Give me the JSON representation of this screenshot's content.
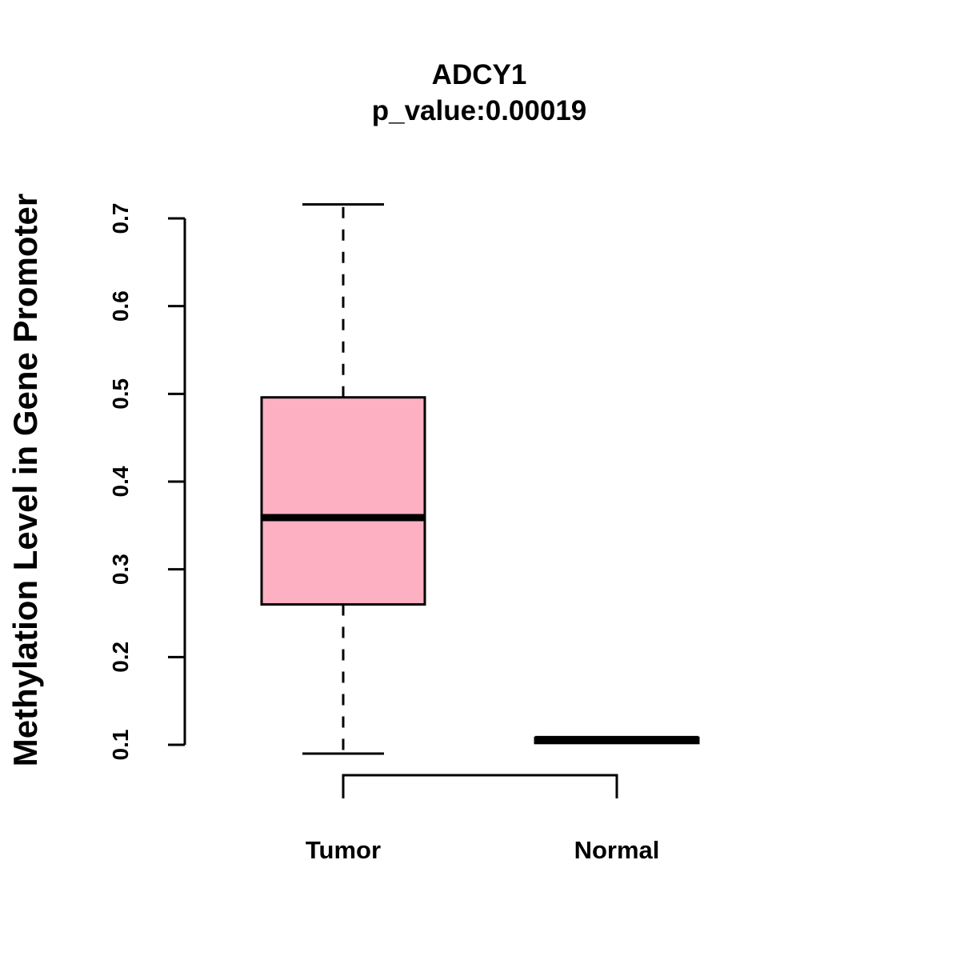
{
  "chart_data": {
    "type": "boxplot",
    "title": "ADCY1",
    "subtitle": "p_value:0.00019",
    "xlabel": "",
    "ylabel": "Methylation Level in Gene Promoter",
    "ylim": [
      0.1,
      0.7
    ],
    "yticks": [
      {
        "value": 0.1,
        "label": "0.1"
      },
      {
        "value": 0.2,
        "label": "0.2"
      },
      {
        "value": 0.3,
        "label": "0.3"
      },
      {
        "value": 0.4,
        "label": "0.4"
      },
      {
        "value": 0.5,
        "label": "0.5"
      },
      {
        "value": 0.6,
        "label": "0.6"
      },
      {
        "value": 0.7,
        "label": "0.7"
      }
    ],
    "categories": [
      "Tumor",
      "Normal"
    ],
    "groups": [
      {
        "name": "Tumor",
        "whisker_low": 0.09,
        "q1": 0.26,
        "median": 0.359,
        "q3": 0.496,
        "whisker_high": 0.716,
        "fill": "#fdb0c2"
      },
      {
        "name": "Normal",
        "whisker_low": 0.102,
        "q1": 0.102,
        "median": 0.106,
        "q3": 0.108,
        "whisker_high": 0.108,
        "fill": "#fdb0c2"
      }
    ],
    "grid": false,
    "legend": "none"
  },
  "colors": {
    "box_fill": "#fdb0c2",
    "line": "#000000",
    "background": "#ffffff"
  }
}
